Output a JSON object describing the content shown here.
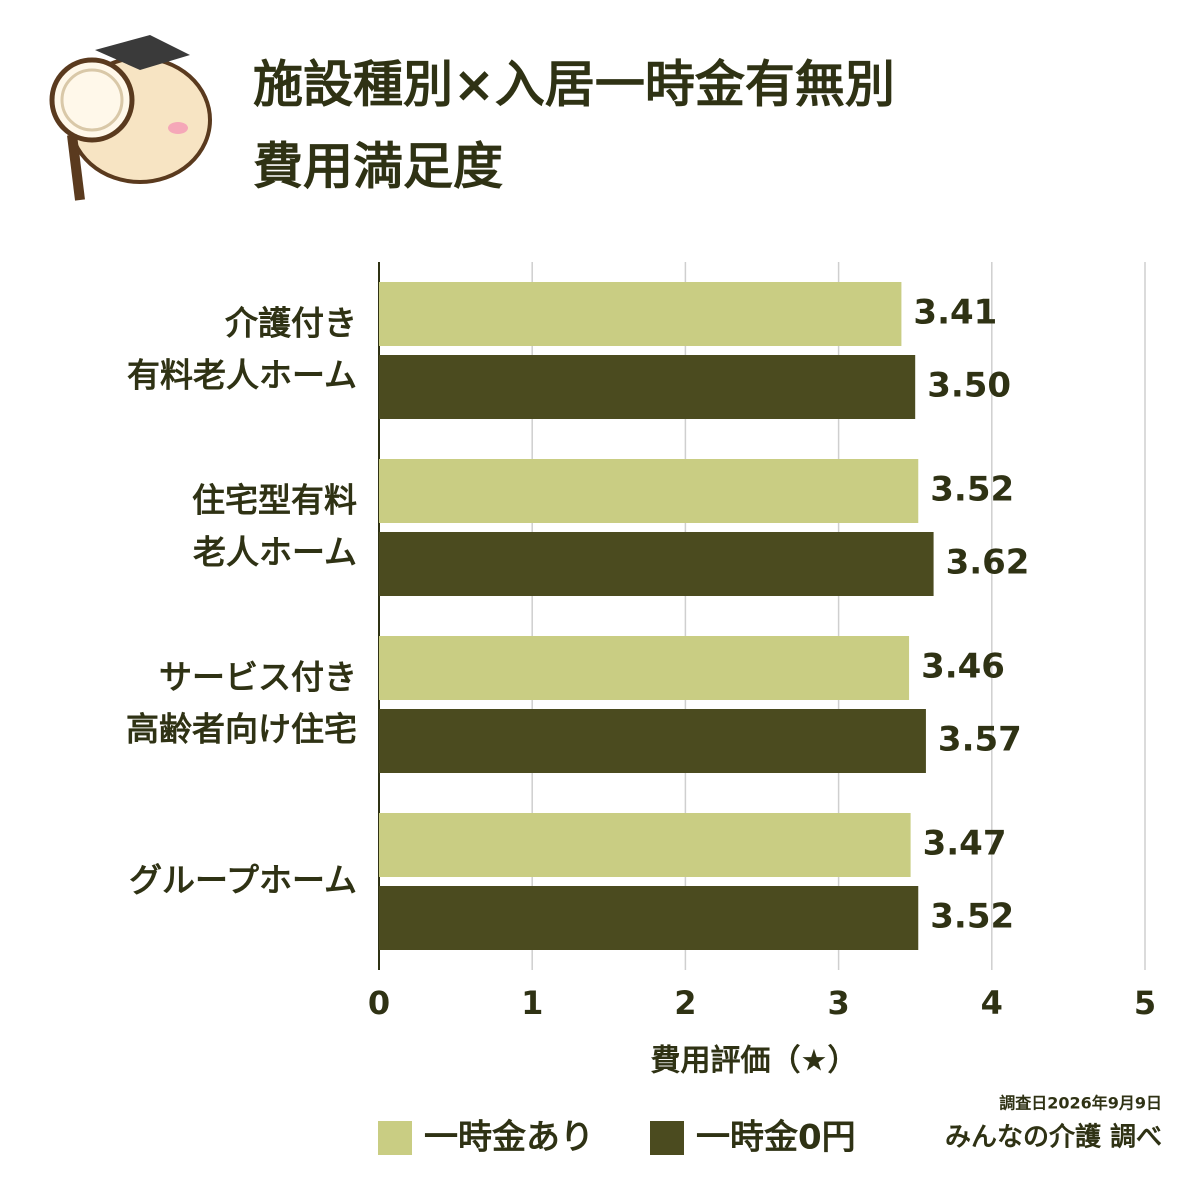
{
  "chart_data": {
    "type": "barh",
    "title": [
      "施設種別×入居一時金有無別",
      "費用満足度"
    ],
    "categories": [
      "介護付き\n有料老人ホーム",
      "住宅型有料\n老人ホーム",
      "サービス付き\n高齢者向け住宅",
      "グループホーム"
    ],
    "series": [
      {
        "name": "一時金あり",
        "color": "#c9cd83",
        "values": [
          3.41,
          3.52,
          3.46,
          3.47
        ]
      },
      {
        "name": "一時金0円",
        "color": "#4b4b1f",
        "values": [
          3.5,
          3.62,
          3.57,
          3.52
        ],
        "value_labels": [
          "3.50",
          "3.62",
          "3.57",
          "3.52"
        ]
      }
    ],
    "xlabel": "費用評価（★）",
    "xlim": [
      0,
      5
    ],
    "xticks": [
      0,
      1,
      2,
      3,
      4,
      5
    ],
    "grid": true,
    "survey_date": "調査日2026年9月9日",
    "credit": "みんなの介護 調べ"
  }
}
